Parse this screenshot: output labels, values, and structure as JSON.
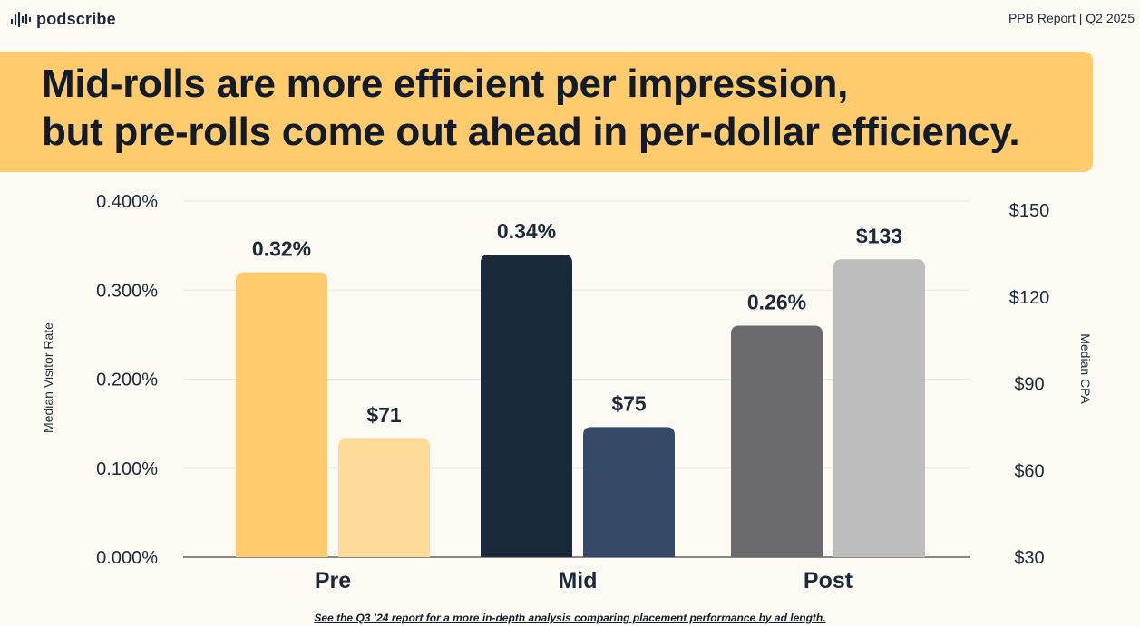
{
  "brand": {
    "name": "podscribe",
    "icon": "waveform-icon"
  },
  "report_label": "PPB Report | Q2 2025",
  "headline": {
    "line1": "Mid-rolls are more efficient per impression,",
    "line2": "but pre-rolls come out ahead in per-dollar efficiency."
  },
  "footnote": "See the Q3 ’24 report for a more in-depth analysis comparing placement performance by ad length.",
  "chart_data": {
    "type": "bar",
    "categories": [
      "Pre",
      "Mid",
      "Post"
    ],
    "series": [
      {
        "name": "",
        "axis": "left",
        "values": [
          0.32,
          0.34,
          0.26
        ],
        "labels": [
          "0.32%",
          "0.34%",
          "0.26%"
        ],
        "colors": [
          "#ffcb6c",
          "#1b2a3b",
          "#6b6b6d"
        ]
      },
      {
        "name": "",
        "axis": "right",
        "values": [
          71,
          75,
          133
        ],
        "labels": [
          "$71",
          "$75",
          "$133"
        ],
        "colors": [
          "#ffdb9a",
          "#344a66",
          "#bdbdbd"
        ]
      }
    ],
    "y_left": {
      "label": "Median Visitor Rate",
      "range": [
        0,
        0.4
      ],
      "ticks": [
        0,
        0.1,
        0.2,
        0.3,
        0.4
      ],
      "tick_labels": [
        "0.000%",
        "0.100%",
        "0.200%",
        "0.300%",
        "0.400%"
      ]
    },
    "y_right": {
      "label": "Median CPA",
      "range": [
        30,
        150
      ],
      "ticks": [
        30,
        60,
        90,
        120,
        150
      ],
      "tick_labels": [
        "$30",
        "$60",
        "$90",
        "$120",
        "$150"
      ]
    },
    "grid": true,
    "legend": "none"
  }
}
